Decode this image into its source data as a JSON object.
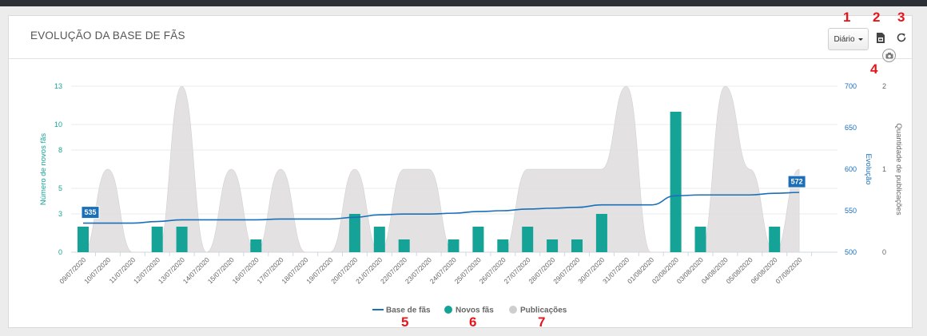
{
  "title": "EVOLUÇÃO DA BASE DE FÃS",
  "period": {
    "label": "Diário"
  },
  "icons": {
    "export": "file-export-icon",
    "refresh": "refresh-icon",
    "camera": "camera-icon"
  },
  "callouts": [
    "1",
    "2",
    "3",
    "4",
    "5",
    "6",
    "7"
  ],
  "colors": {
    "bars": "#14a396",
    "line": "#1a6fb8",
    "area": "#e1dfdf",
    "accent_red": "#e8141c"
  },
  "chart_data": {
    "type": "bar",
    "categories": [
      "09/07/2020",
      "10/07/2020",
      "11/07/2020",
      "12/07/2020",
      "13/07/2020",
      "14/07/2020",
      "15/07/2020",
      "16/07/2020",
      "17/07/2020",
      "18/07/2020",
      "19/07/2020",
      "20/07/2020",
      "21/07/2020",
      "22/07/2020",
      "23/07/2020",
      "24/07/2020",
      "25/07/2020",
      "26/07/2020",
      "27/07/2020",
      "28/07/2020",
      "29/07/2020",
      "30/07/2020",
      "31/07/2020",
      "01/08/2020",
      "02/08/2020",
      "03/08/2020",
      "04/08/2020",
      "05/08/2020",
      "06/08/2020",
      "07/08/2020"
    ],
    "series": [
      {
        "name": "Novos fãs",
        "type": "bar",
        "axis": "left",
        "values": [
          2,
          0,
          0,
          2,
          2,
          0,
          0,
          1,
          0,
          0,
          0,
          3,
          2,
          1,
          0,
          1,
          2,
          1,
          2,
          1,
          1,
          3,
          0,
          0,
          11,
          2,
          0,
          0,
          2,
          0
        ]
      },
      {
        "name": "Base de fãs",
        "type": "line",
        "axis": "right1",
        "values": [
          535,
          535,
          535,
          537,
          539,
          539,
          539,
          539,
          540,
          540,
          540,
          542,
          545,
          546,
          546,
          547,
          549,
          550,
          552,
          553,
          554,
          557,
          557,
          557,
          568,
          569,
          569,
          569,
          571,
          572
        ]
      },
      {
        "name": "Publicações",
        "type": "area",
        "axis": "right2",
        "values": [
          0,
          1,
          0,
          0,
          2,
          0,
          1,
          0,
          1,
          0,
          0,
          1,
          0,
          1,
          1,
          0,
          0,
          0,
          1,
          1,
          1,
          1,
          2,
          0,
          0,
          0,
          2,
          1,
          0,
          1
        ]
      }
    ],
    "axes": {
      "left": {
        "label": "Número de novos fãs",
        "ticks": [
          "0",
          "3",
          "5",
          "8",
          "10",
          "13"
        ],
        "range": [
          0,
          13
        ]
      },
      "right1": {
        "label": "Evolução",
        "ticks": [
          "500",
          "550",
          "600",
          "650",
          "700"
        ],
        "range": [
          500,
          700
        ]
      },
      "right2": {
        "label": "Quantidade de publicações",
        "ticks": [
          "0",
          "1",
          "2"
        ],
        "range": [
          0,
          2
        ]
      }
    },
    "labels": [
      {
        "category": "09/07/2020",
        "text": "535"
      },
      {
        "category": "07/08/2020",
        "text": "572"
      }
    ],
    "legend": {
      "placement": "bottom-center",
      "items": [
        "Base de fãs",
        "Novos fãs",
        "Publicações"
      ]
    },
    "grid": true
  }
}
